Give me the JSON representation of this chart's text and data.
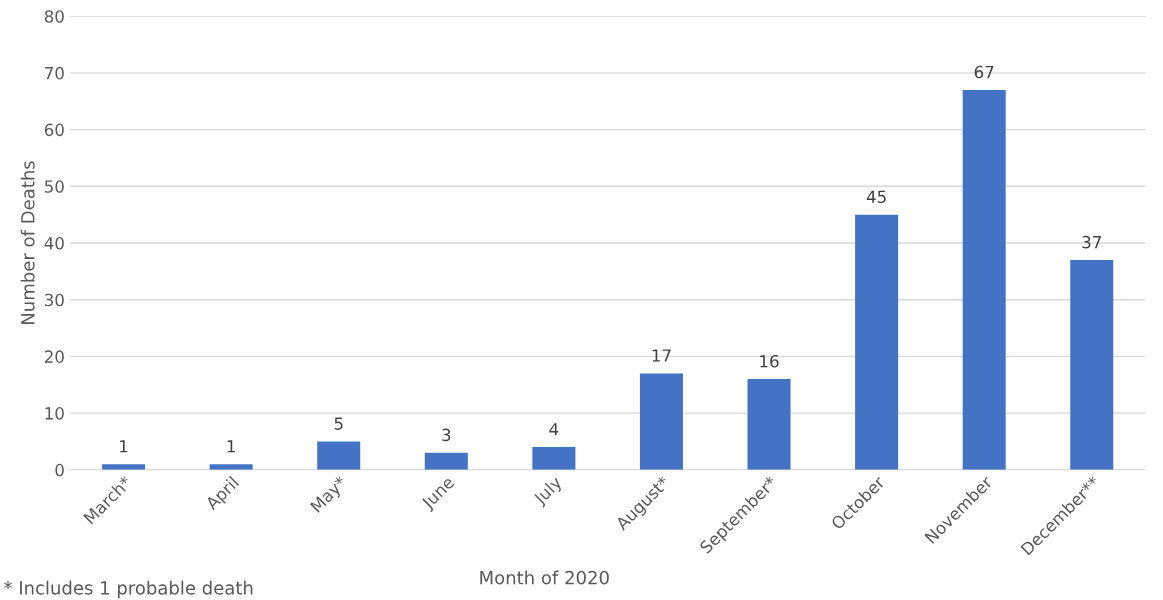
{
  "chart_data": {
    "type": "bar",
    "xlabel": "Month of 2020",
    "ylabel": "Number of Deaths",
    "categories": [
      "March*",
      "April",
      "May*",
      "June",
      "July",
      "August*",
      "September*",
      "October",
      "November",
      "December**"
    ],
    "values": [
      1,
      1,
      5,
      3,
      4,
      17,
      16,
      45,
      67,
      37
    ],
    "color": "#4472c4",
    "ylim": [
      0,
      80
    ],
    "yticks": [
      0,
      10,
      20,
      30,
      40,
      50,
      60,
      70,
      80
    ],
    "grid": "y",
    "data_labels": true,
    "annotations": [
      "* Includes 1 probable death"
    ]
  }
}
